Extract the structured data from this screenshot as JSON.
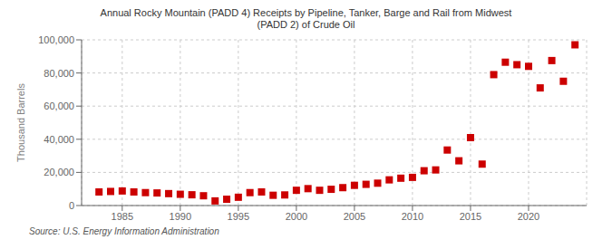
{
  "chart_data": {
    "type": "scatter",
    "title": "Annual Rocky Mountain (PADD 4) Receipts by Pipeline, Tanker, Barge and Rail from Midwest\n(PADD 2) of Crude Oil",
    "ylabel": "Thousand Barrels",
    "annotations": [
      "Source: U.S. Energy Information Administration"
    ],
    "x": [
      1983,
      1984,
      1985,
      1986,
      1987,
      1988,
      1989,
      1990,
      1991,
      1992,
      1993,
      1994,
      1995,
      1996,
      1997,
      1998,
      1999,
      2000,
      2001,
      2002,
      2003,
      2004,
      2005,
      2006,
      2007,
      2008,
      2009,
      2010,
      2011,
      2012,
      2013,
      2014,
      2015,
      2016,
      2017,
      2018,
      2019,
      2020,
      2021,
      2022,
      2023,
      2024
    ],
    "values": [
      8200,
      8500,
      8800,
      8200,
      7800,
      7600,
      7200,
      6800,
      6500,
      5900,
      2800,
      3800,
      5000,
      7800,
      8200,
      6200,
      6400,
      9200,
      10200,
      9200,
      9800,
      10800,
      12200,
      12800,
      13500,
      15500,
      16500,
      17000,
      21000,
      21500,
      33500,
      27000,
      41000,
      25000,
      79000,
      86500,
      85000,
      84000,
      71000,
      87500,
      75000,
      97000
    ],
    "color": "#cc0000",
    "marker": "square",
    "xlim": [
      1981.5,
      2025
    ],
    "ylim": [
      0,
      100000
    ],
    "xticks": [
      1985,
      1990,
      1995,
      2000,
      2005,
      2010,
      2015,
      2020
    ],
    "yticks": [
      0,
      {
        "value": 20000,
        "label": "20,000"
      },
      {
        "value": 40000,
        "label": "40,000"
      },
      {
        "value": 60000,
        "label": "60,000"
      },
      {
        "value": 80000,
        "label": "80,000"
      },
      {
        "value": 100000,
        "label": "100,000"
      }
    ],
    "grid": true
  }
}
